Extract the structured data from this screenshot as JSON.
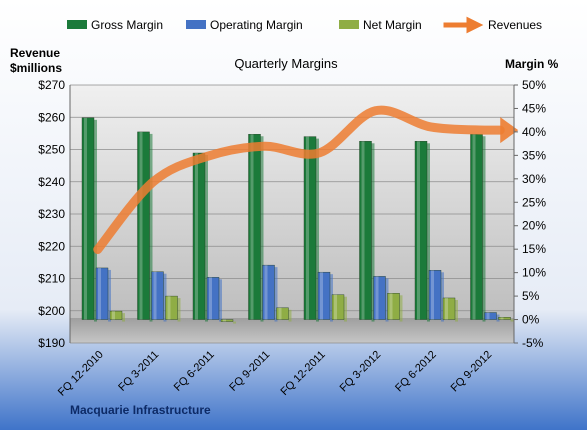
{
  "chart_data": {
    "type": "bar",
    "title": "Quarterly Margins",
    "left_axis_label_line1": "Revenue",
    "left_axis_label_line2": "$millions",
    "right_axis_label": "Margin %",
    "company": "Macquarie Infrastructure",
    "categories": [
      "FQ 12-2010",
      "FQ 3-2011",
      "FQ 6-2011",
      "FQ 9-2011",
      "FQ 12-2011",
      "FQ 3-2012",
      "FQ 6-2012",
      "FQ 9-2012"
    ],
    "left_axis": {
      "min": 190,
      "max": 270,
      "step": 10,
      "tick_labels": [
        "$190",
        "$200",
        "$210",
        "$220",
        "$230",
        "$240",
        "$250",
        "$260",
        "$270"
      ]
    },
    "right_axis": {
      "min": -5,
      "max": 50,
      "step": 5,
      "tick_labels": [
        "-5%",
        "0%",
        "5%",
        "10%",
        "15%",
        "20%",
        "25%",
        "30%",
        "35%",
        "40%",
        "45%",
        "50%"
      ]
    },
    "series": [
      {
        "name": "Gross Margin",
        "axis": "right",
        "values": [
          43,
          40,
          35.5,
          39.5,
          39,
          38,
          38,
          39.5
        ],
        "color": "#1b7a3a"
      },
      {
        "name": "Operating Margin",
        "axis": "right",
        "values": [
          11,
          10.2,
          9,
          11.6,
          10.1,
          9.2,
          10.5,
          1.5
        ],
        "color": "#4472c4"
      },
      {
        "name": "Net Margin",
        "axis": "right",
        "values": [
          1.8,
          5,
          0,
          2.5,
          5.3,
          5.6,
          4.6,
          0.5
        ],
        "color": "#8fad45"
      },
      {
        "name": "Revenues",
        "axis": "left",
        "values": [
          219,
          240,
          248,
          251,
          249,
          262,
          257,
          256
        ],
        "color": "#ed7d31"
      }
    ],
    "grid": true,
    "legend_position": "top"
  }
}
